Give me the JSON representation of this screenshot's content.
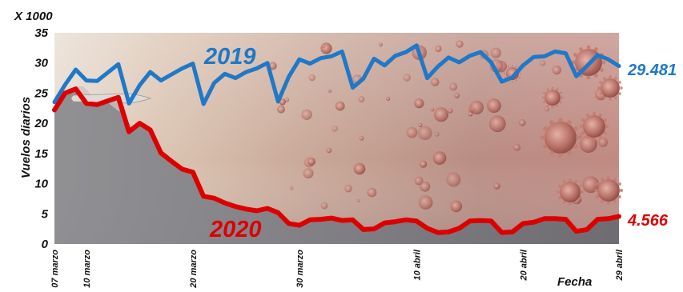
{
  "chart_data": {
    "type": "line",
    "unit_label": "X 1000",
    "ylabel": "Vuelos diarios",
    "xlabel": "Fecha",
    "ylim": [
      0,
      35
    ],
    "yticks": [
      "0",
      "5",
      "10",
      "15",
      "20",
      "25",
      "30",
      "35"
    ],
    "x_tick_labels": [
      {
        "label": "07 marzo",
        "index": 0
      },
      {
        "label": "10 marzo",
        "index": 3
      },
      {
        "label": "20 marzo",
        "index": 13
      },
      {
        "label": "30 marzo",
        "index": 23
      },
      {
        "label": "10 abril",
        "index": 34
      },
      {
        "label": "20 abril",
        "index": 44
      },
      {
        "label": "29 abril",
        "index": 53
      }
    ],
    "grid": false,
    "series": [
      {
        "name": "2019",
        "color": "#1F78C8",
        "end_value_label": "29.481",
        "values": [
          23.5,
          26.4,
          28.9,
          27.1,
          27.0,
          28.4,
          29.8,
          23.3,
          26.3,
          28.5,
          27.1,
          28.1,
          29.1,
          29.9,
          23.2,
          26.7,
          28.2,
          27.5,
          28.5,
          29.1,
          30.0,
          23.6,
          27.7,
          30.6,
          29.9,
          30.8,
          31.1,
          31.9,
          25.9,
          27.4,
          30.7,
          29.6,
          31.2,
          31.8,
          32.9,
          27.5,
          29.4,
          30.9,
          30.1,
          31.2,
          31.8,
          30.1,
          26.9,
          27.6,
          29.6,
          31.0,
          31.1,
          31.9,
          31.6,
          27.8,
          29.5,
          31.3,
          30.6,
          29.5
        ]
      },
      {
        "name": "2020",
        "color": "#DD0000",
        "end_value_label": "4.566",
        "values": [
          22.2,
          25.0,
          25.7,
          23.3,
          23.1,
          23.7,
          24.3,
          18.6,
          20.0,
          18.9,
          15.1,
          13.7,
          12.4,
          11.9,
          7.9,
          7.6,
          6.8,
          6.2,
          5.8,
          5.5,
          5.9,
          5.2,
          3.4,
          3.1,
          4.0,
          4.1,
          4.3,
          3.9,
          4.0,
          2.4,
          2.5,
          3.5,
          3.7,
          4.0,
          3.8,
          2.6,
          1.9,
          2.0,
          2.6,
          3.8,
          3.9,
          3.8,
          1.9,
          2.0,
          3.4,
          3.6,
          4.2,
          4.2,
          4.1,
          2.1,
          2.4,
          4.1,
          4.2,
          4.566
        ]
      }
    ]
  }
}
